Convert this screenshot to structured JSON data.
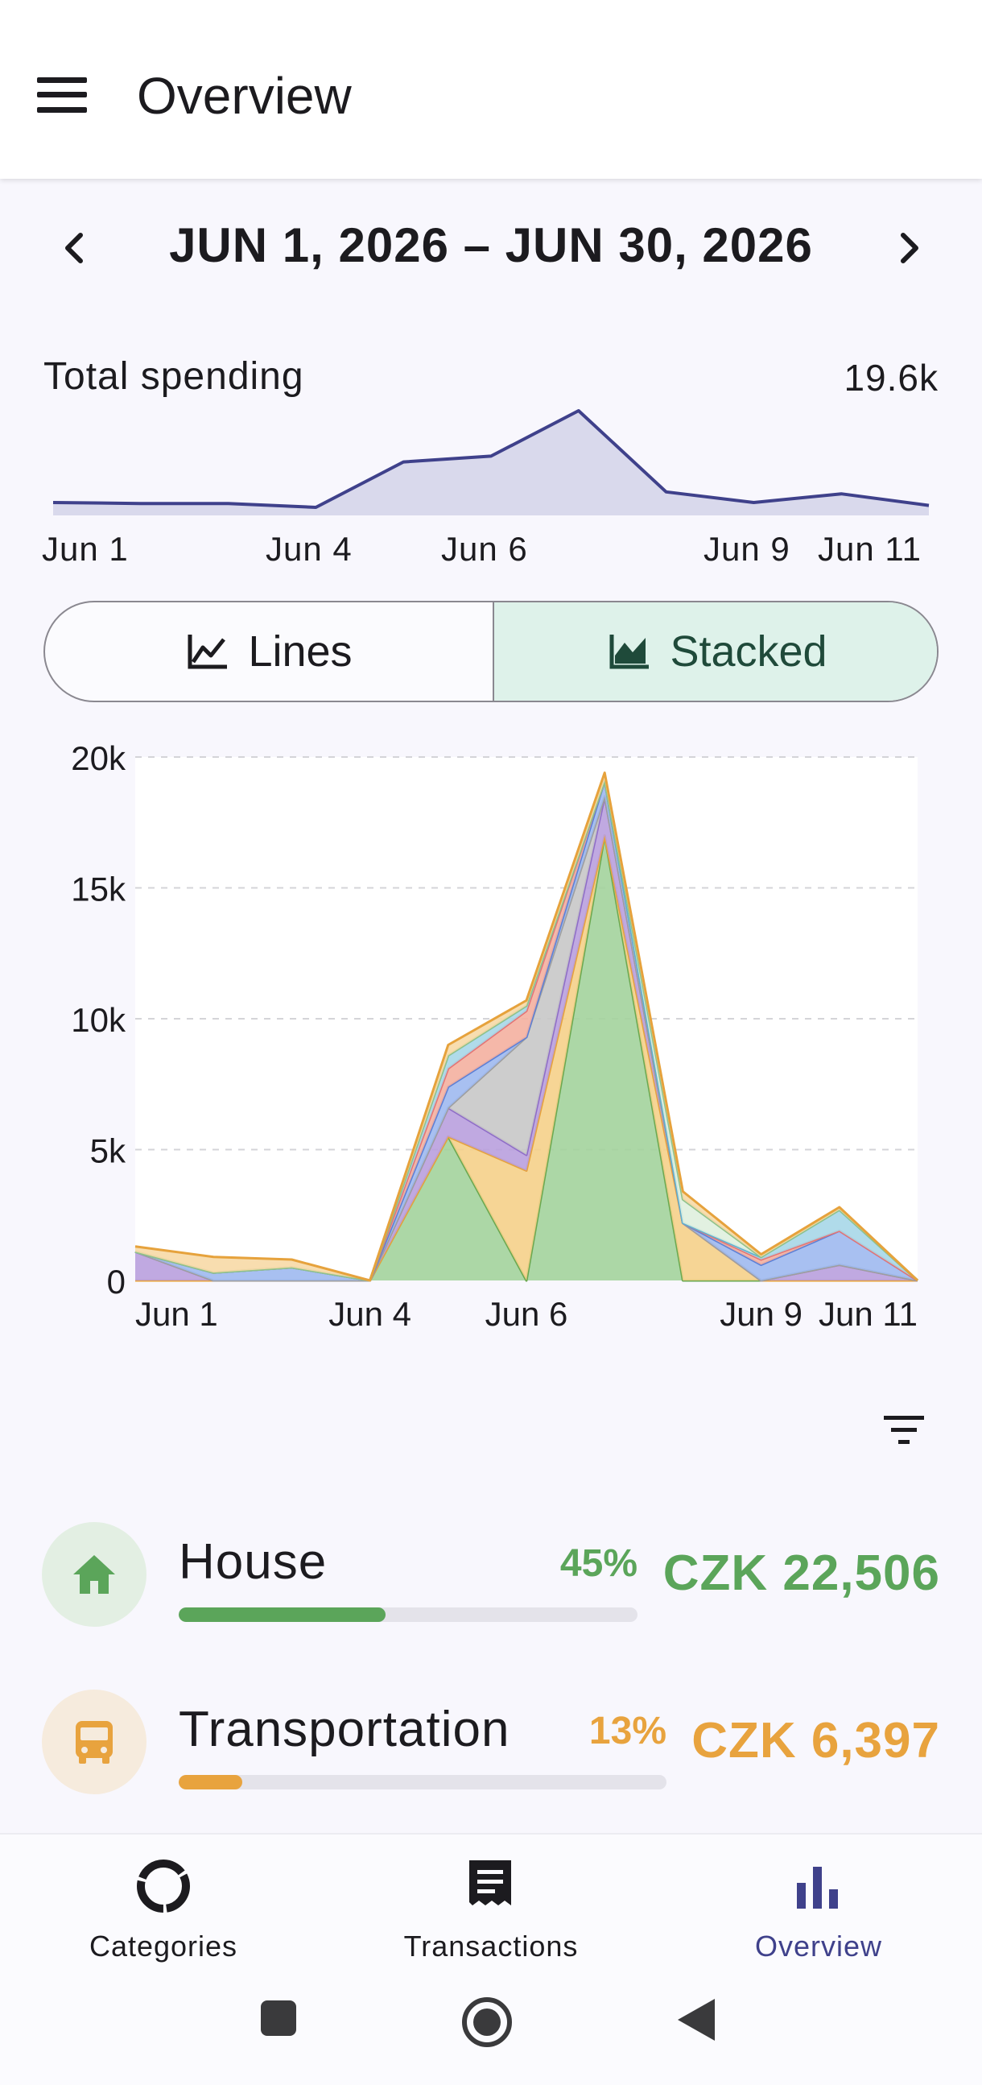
{
  "app_bar": {
    "title": "Overview",
    "menu_icon": "menu-icon"
  },
  "date_range": {
    "label": "JUN 1, 2026 – JUN 30, 2026",
    "prev_icon": "chevron-left-icon",
    "next_icon": "chevron-right-icon"
  },
  "total_spending": {
    "label": "Total spending",
    "value": "19.6k",
    "sparkline": {
      "type": "area",
      "x_labels": [
        "Jun 1",
        "Jun 4",
        "Jun 6",
        "Jun 9",
        "Jun 11"
      ],
      "values": [
        0.05,
        0.04,
        0.04,
        0.0,
        0.47,
        0.53,
        1.0,
        0.16,
        0.05,
        0.14,
        0.02
      ],
      "color": "#3f418b",
      "fill": "#d9d9ec"
    }
  },
  "view_toggle": {
    "lines_label": "Lines",
    "stacked_label": "Stacked",
    "selected": "Stacked",
    "lines_icon": "line-chart-icon",
    "stacked_icon": "area-chart-icon"
  },
  "chart_data": {
    "type": "area",
    "stacked": true,
    "x": [
      "Jun 1",
      "Jun 2",
      "Jun 3",
      "Jun 4",
      "Jun 5",
      "Jun 6",
      "Jun 7",
      "Jun 8",
      "Jun 9",
      "Jun 10",
      "Jun 11"
    ],
    "x_tick_labels": [
      "Jun 1",
      "Jun 4",
      "Jun 6",
      "Jun 9",
      "Jun 11"
    ],
    "y_ticks": [
      "0",
      "5k",
      "10k",
      "15k",
      "20k"
    ],
    "ylim": [
      0,
      20000
    ],
    "grid": true,
    "series": [
      {
        "color": "#a3d39c",
        "stroke": "#6aa84f",
        "values": [
          0,
          0,
          0,
          0,
          5500,
          0,
          17000,
          0,
          0,
          0,
          0
        ]
      },
      {
        "color": "#f5d08a",
        "stroke": "#e6a23c",
        "values": [
          0,
          0,
          0,
          0,
          0,
          4200,
          0,
          2200,
          0,
          0,
          0
        ]
      },
      {
        "color": "#b9a0de",
        "stroke": "#8e6cc7",
        "values": [
          1100,
          0,
          0,
          0,
          1100,
          600,
          1500,
          0,
          0,
          600,
          0
        ]
      },
      {
        "color": "#c8c8c8",
        "stroke": "#9e9e9e",
        "values": [
          0,
          0,
          0,
          0,
          0,
          4500,
          0,
          0,
          0,
          0,
          0
        ]
      },
      {
        "color": "#9fb9ef",
        "stroke": "#5b7fd6",
        "values": [
          0,
          300,
          500,
          0,
          800,
          0,
          600,
          0,
          600,
          1300,
          0
        ]
      },
      {
        "color": "#f4b0a0",
        "stroke": "#e57373",
        "values": [
          0,
          0,
          0,
          0,
          700,
          1000,
          0,
          0,
          200,
          0,
          0
        ]
      },
      {
        "color": "#a7d7e8",
        "stroke": "#5eb0cf",
        "values": [
          0,
          0,
          0,
          0,
          500,
          200,
          0,
          0,
          100,
          800,
          0
        ]
      },
      {
        "color": "#dff0de",
        "stroke": "#8fc28a",
        "values": [
          0,
          0,
          0,
          0,
          0,
          0,
          0,
          900,
          0,
          0,
          0
        ]
      },
      {
        "color": "#f7d9a6",
        "stroke": "#e6a23c",
        "values": [
          200,
          600,
          300,
          0,
          400,
          200,
          300,
          300,
          100,
          100,
          0
        ]
      }
    ]
  },
  "filter_icon": "filter-icon",
  "categories": [
    {
      "name": "House",
      "percent": "45%",
      "amount": "CZK 22,506",
      "share": 0.45,
      "color": "#5ba55a",
      "bg": "#e3efe3",
      "icon": "house-icon"
    },
    {
      "name": "Transportation",
      "percent": "13%",
      "amount": "CZK 6,397",
      "share": 0.13,
      "color": "#e8a33e",
      "bg": "#f6ebdd",
      "icon": "bus-icon"
    }
  ],
  "bottom_nav": {
    "items": [
      {
        "label": "Categories",
        "icon": "donut-icon"
      },
      {
        "label": "Transactions",
        "icon": "receipt-icon"
      },
      {
        "label": "Overview",
        "icon": "bar-chart-icon"
      }
    ],
    "selected": "Overview",
    "active_color": "#3f418b"
  },
  "system_nav": {
    "icons": [
      "square-icon",
      "home-circle-icon",
      "back-triangle-icon"
    ]
  }
}
